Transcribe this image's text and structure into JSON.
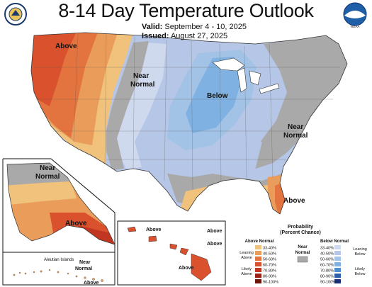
{
  "header": {
    "title": "8-14 Day Temperature Outlook",
    "valid_label": "Valid:",
    "valid_value": "September 4 - 10, 2025",
    "issued_label": "Issued:",
    "issued_value": "August 27, 2025"
  },
  "logos": {
    "left": "doc-seal",
    "right": "noaa-logo",
    "right_text": "NOAA"
  },
  "map_labels": {
    "west": "Above",
    "north_central_1": "Near",
    "north_central_2": "Normal",
    "midwest": "Below",
    "northeast_1": "Near",
    "northeast_2": "Normal",
    "florida": "Above",
    "alaska_north_1": "Near",
    "alaska_north_2": "Normal",
    "alaska_south": "Above",
    "aleutian_title": "Aleutian Islands",
    "aleutian_near_1": "Near",
    "aleutian_near_2": "Normal",
    "aleutian_above": "Above",
    "hawaii_1": "Above",
    "hawaii_2": "Above",
    "hawaii_3": "Above",
    "hawaii_4": "Above"
  },
  "legend": {
    "title": "Probability",
    "subtitle": "(Percent Chance)",
    "above_title": "Above Normal",
    "below_title": "Below Normal",
    "near_title_1": "Near",
    "near_title_2": "Normal",
    "leaning_above_1": "Leaning",
    "leaning_above_2": "Above",
    "likely_above_1": "Likely",
    "likely_above_2": "Above",
    "leaning_below_1": "Leaning",
    "leaning_below_2": "Below",
    "likely_below_1": "Likely",
    "likely_below_2": "Below",
    "ranges": [
      "33-40%",
      "40-50%",
      "50-60%",
      "60-70%",
      "70-80%",
      "80-90%",
      "90-100%"
    ],
    "above_colors": [
      "#f0c27c",
      "#ea9d5a",
      "#e3743f",
      "#d9522d",
      "#c03620",
      "#9a2113",
      "#6e150b"
    ],
    "below_colors": [
      "#cfd9ee",
      "#b6c6e6",
      "#a2c2e6",
      "#7fb2e2",
      "#4f8fd0",
      "#2d5ea8",
      "#1a2f78"
    ],
    "near_color": "#a9a9a9"
  }
}
